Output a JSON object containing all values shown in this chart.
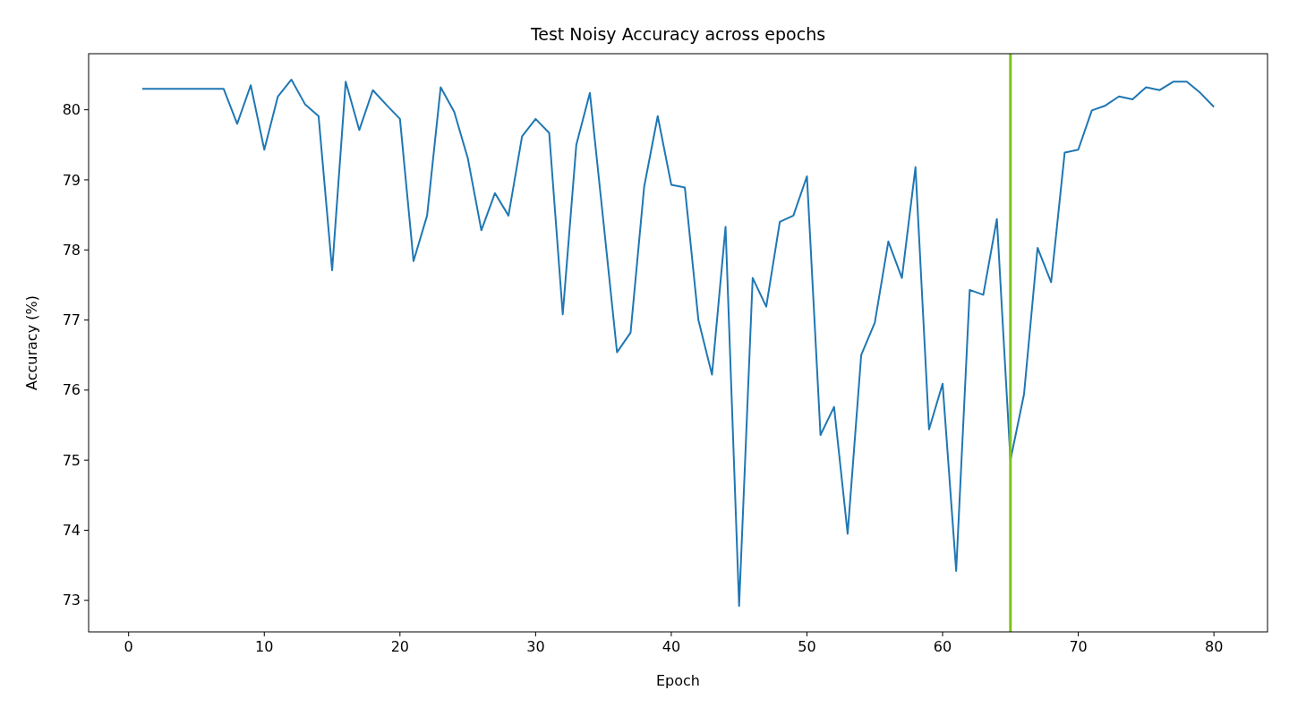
{
  "chart_data": {
    "type": "line",
    "title": "Test Noisy Accuracy across epochs",
    "xlabel": "Epoch",
    "ylabel": "Accuracy (%)",
    "x": [
      1,
      2,
      3,
      4,
      5,
      6,
      7,
      8,
      9,
      10,
      11,
      12,
      13,
      14,
      15,
      16,
      17,
      18,
      19,
      20,
      21,
      22,
      23,
      24,
      25,
      26,
      27,
      28,
      29,
      30,
      31,
      32,
      33,
      34,
      35,
      36,
      37,
      38,
      39,
      40,
      41,
      42,
      43,
      44,
      45,
      46,
      47,
      48,
      49,
      50,
      51,
      52,
      53,
      54,
      55,
      56,
      57,
      58,
      59,
      60,
      61,
      62,
      63,
      64,
      65,
      66,
      67,
      68,
      69,
      70,
      71,
      72,
      73,
      74,
      75,
      76,
      77,
      78,
      79,
      80
    ],
    "series": [
      {
        "color": "#1f77b4",
        "values": [
          80.3,
          80.3,
          80.3,
          80.3,
          80.3,
          80.3,
          80.3,
          79.8,
          80.35,
          79.43,
          80.19,
          80.43,
          80.08,
          79.91,
          77.71,
          80.4,
          79.71,
          80.28,
          80.07,
          79.87,
          77.84,
          78.49,
          80.32,
          79.97,
          79.31,
          78.28,
          78.81,
          78.49,
          79.62,
          79.87,
          79.67,
          77.08,
          79.5,
          80.24,
          78.4,
          76.54,
          76.82,
          78.9,
          79.91,
          78.93,
          78.89,
          77.0,
          76.22,
          78.33,
          72.92,
          77.6,
          77.19,
          78.4,
          78.49,
          79.05,
          75.36,
          75.76,
          73.95,
          76.5,
          76.96,
          78.12,
          77.6,
          79.18,
          75.44,
          76.09,
          73.42,
          77.43,
          77.36,
          78.44,
          75.0,
          75.94,
          78.03,
          77.54,
          79.39,
          79.43,
          79.99,
          80.06,
          80.19,
          80.15,
          80.32,
          80.28,
          80.4,
          80.4,
          80.24,
          80.04
        ]
      }
    ],
    "xlim": [
      -2.95,
      83.95
    ],
    "ylim": [
      72.55,
      80.8
    ],
    "xticks": [
      0,
      10,
      20,
      30,
      40,
      50,
      60,
      70,
      80
    ],
    "yticks": [
      73,
      74,
      75,
      76,
      77,
      78,
      79,
      80
    ],
    "ref_lines": [
      {
        "axis": "x",
        "value": 65,
        "color": "#7fc31c"
      }
    ],
    "grid": false,
    "legend": false
  }
}
